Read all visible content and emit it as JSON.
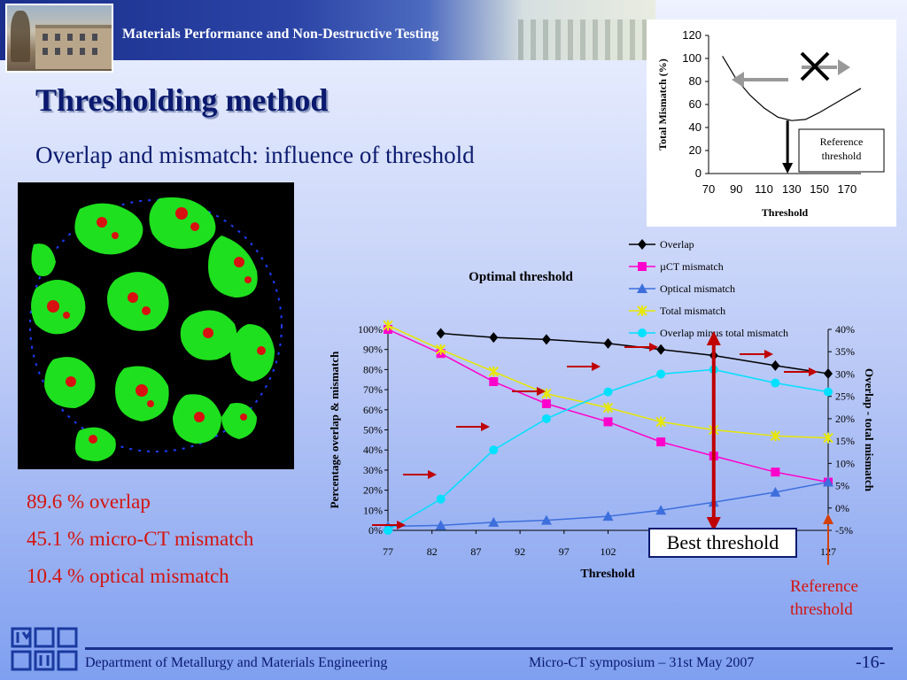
{
  "header": {
    "title": "Materials Performance and Non-Destructive Testing"
  },
  "slide": {
    "title": "Thresholding method",
    "subtitle": "Overlap and mismatch: influence of threshold"
  },
  "stats": [
    "89.6 % overlap",
    "45.1 % micro-CT mismatch",
    "10.4 % optical mismatch"
  ],
  "annotations": {
    "best_threshold": "Best threshold",
    "reference_threshold_line1": "Reference",
    "reference_threshold_line2": "threshold"
  },
  "footer": {
    "department": "Department of Metallurgy and Materials Engineering",
    "event": "Micro-CT symposium – 31st May 2007",
    "page": "-16-"
  },
  "colors": {
    "accent_red": "#d4140f",
    "title_blue": "#0b1a6e"
  },
  "chart_data": [
    {
      "type": "line",
      "title": "",
      "xlabel": "Threshold",
      "ylabel": "Total Mismatch (%)",
      "x_ticks": [
        70,
        90,
        110,
        130,
        150,
        170
      ],
      "y_ticks": [
        0,
        20,
        40,
        60,
        80,
        100,
        120
      ],
      "xlim": [
        70,
        180
      ],
      "ylim": [
        0,
        120
      ],
      "series": [
        {
          "x": [
            80,
            90,
            100,
            110,
            120,
            130,
            140,
            150,
            160,
            170,
            180
          ],
          "values": [
            102,
            82,
            68,
            57,
            49,
            46,
            47,
            53,
            60,
            67,
            74
          ]
        }
      ],
      "annotation": {
        "text_line1": "Reference",
        "text_line2": "threshold",
        "x": 127
      }
    },
    {
      "type": "line",
      "title": "Optimal threshold",
      "xlabel": "Threshold",
      "ylabel": "Percentage overlap & mismatch",
      "y2label": "Overlap - total mismatch",
      "x_ticks": [
        77,
        82,
        87,
        92,
        97,
        102,
        127
      ],
      "y_ticks": [
        "0%",
        "10%",
        "20%",
        "30%",
        "40%",
        "50%",
        "60%",
        "70%",
        "80%",
        "90%",
        "100%"
      ],
      "y2_ticks": [
        "-5%",
        "0%",
        "5%",
        "10%",
        "15%",
        "20%",
        "25%",
        "30%",
        "35%",
        "40%"
      ],
      "xlim": [
        77,
        127
      ],
      "ylim": [
        0,
        100
      ],
      "y2lim": [
        -5,
        40
      ],
      "legend_position": "top-right",
      "series": [
        {
          "name": "Overlap",
          "color": "#000000",
          "marker": "diamond",
          "axis": "left",
          "x": [
            83,
            89,
            95,
            102,
            108,
            114,
            121,
            127
          ],
          "values": [
            98,
            96,
            95,
            93,
            90,
            87,
            82,
            78
          ]
        },
        {
          "name": "µCT mismatch",
          "color": "#ff00cc",
          "marker": "square",
          "axis": "left",
          "x": [
            77,
            83,
            89,
            95,
            102,
            108,
            114,
            121,
            127
          ],
          "values": [
            100,
            88,
            74,
            63,
            54,
            44,
            37,
            29,
            24
          ]
        },
        {
          "name": "Optical mismatch",
          "color": "#3d6fdc",
          "marker": "triangle",
          "axis": "left",
          "x": [
            77,
            83,
            89,
            95,
            102,
            108,
            114,
            121,
            127
          ],
          "values": [
            2,
            2.5,
            4,
            5,
            7,
            10,
            14,
            19,
            24
          ]
        },
        {
          "name": "Total mismatch",
          "color": "#e8e800",
          "marker": "star",
          "axis": "left",
          "x": [
            77,
            83,
            89,
            95,
            102,
            108,
            114,
            121,
            127
          ],
          "values": [
            102,
            90,
            79,
            68,
            61,
            54,
            50,
            47,
            46
          ]
        },
        {
          "name": "Overlap minus total mismatch",
          "color": "#00e0ff",
          "marker": "circle",
          "axis": "right",
          "x": [
            77,
            83,
            89,
            95,
            102,
            108,
            114,
            121,
            127
          ],
          "values": [
            -5,
            2,
            13,
            20,
            26,
            30,
            31,
            28,
            26
          ]
        }
      ],
      "best_threshold_x": 114,
      "reference_threshold_x": 127
    }
  ]
}
